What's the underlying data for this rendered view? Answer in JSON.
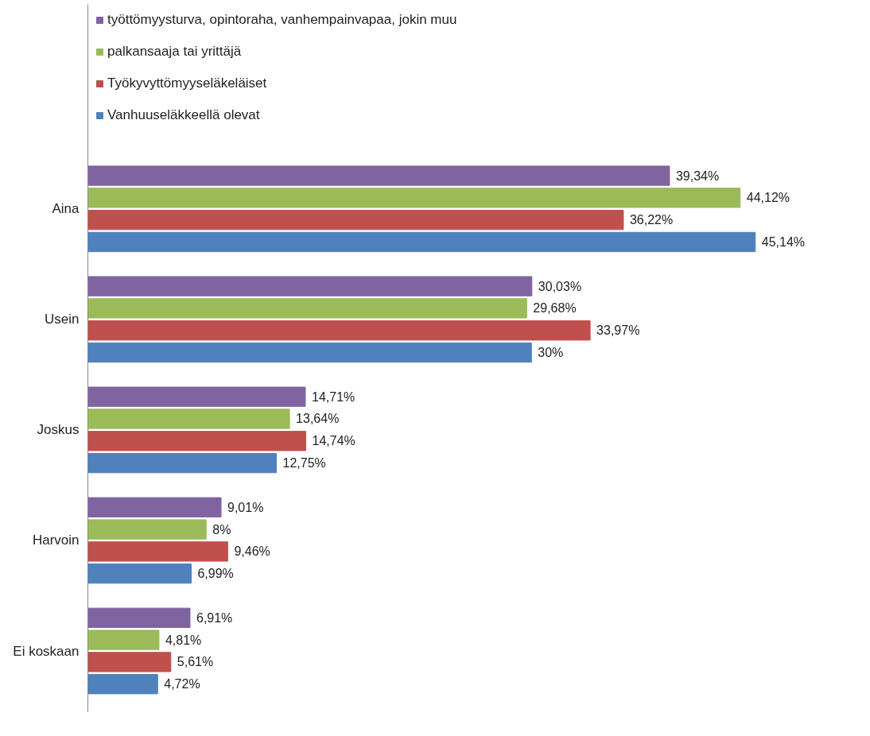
{
  "chart_data": {
    "type": "bar",
    "orientation": "horizontal",
    "categories": [
      "Aina",
      "Usein",
      "Joskus",
      "Harvoin",
      "Ei koskaan"
    ],
    "series": [
      {
        "name": "työttömyysturva, opintoraha, vanhempainvapaa, jokin muu",
        "color": "#8064a2",
        "values": [
          39.34,
          30.03,
          14.71,
          9.01,
          6.91
        ],
        "value_labels": [
          "39,34%",
          "30,03%",
          "14,71%",
          "9,01%",
          "6,91%"
        ]
      },
      {
        "name": "palkansaaja tai yrittäjä",
        "color": "#9bbb59",
        "values": [
          44.12,
          29.68,
          13.64,
          8,
          4.81
        ],
        "value_labels": [
          "44,12%",
          "29,68%",
          "13,64%",
          "8%",
          "4,81%"
        ]
      },
      {
        "name": "Työkyvyttömyyseläkeläiset",
        "color": "#c0504d",
        "values": [
          36.22,
          33.97,
          14.74,
          9.46,
          5.61
        ],
        "value_labels": [
          "36,22%",
          "33,97%",
          "14,74%",
          "9,46%",
          "5,61%"
        ]
      },
      {
        "name": "Vanhuuseläkkeellä olevat",
        "color": "#4f81bd",
        "values": [
          45.14,
          30,
          12.75,
          6.99,
          4.72
        ],
        "value_labels": [
          "45,14%",
          "30%",
          "12,75%",
          "6,99%",
          "4,72%"
        ]
      }
    ],
    "legend": "top",
    "tick_labels": "y",
    "grid": false
  }
}
